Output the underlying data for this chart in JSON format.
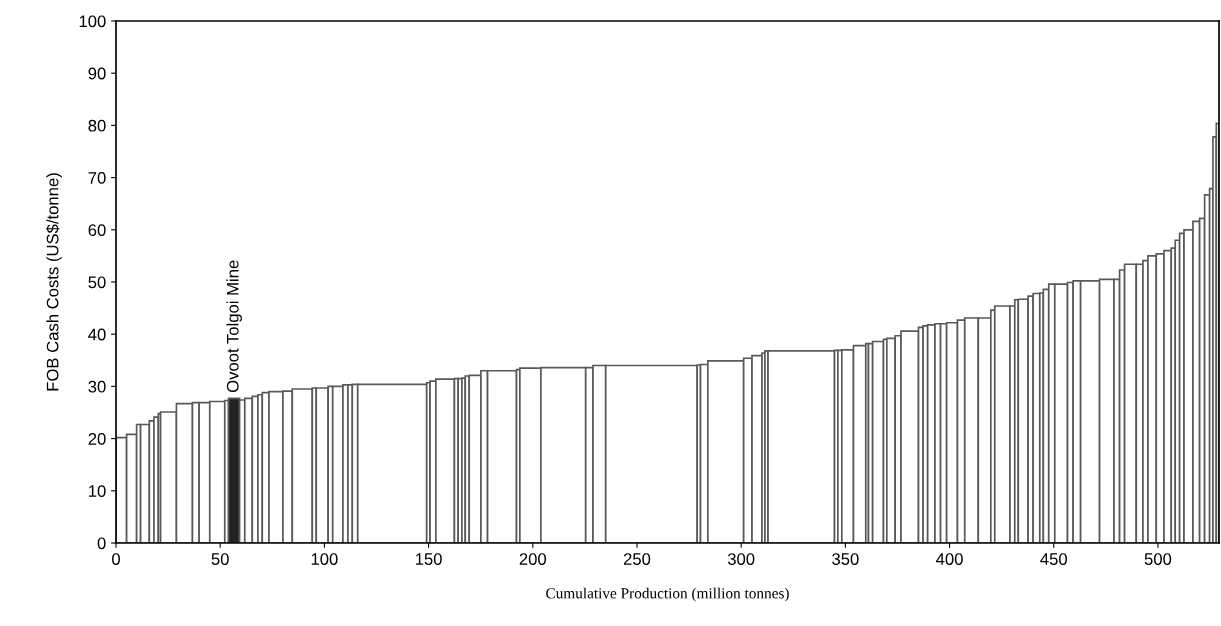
{
  "chart_data": {
    "type": "histogram",
    "xlabel": "Cumulative Production (million tonnes)",
    "ylabel": "FOB Cash Costs (US$/tonne)",
    "bins": [
      0,
      5.1,
      9.9,
      11.8,
      16,
      18.2,
      20.3,
      21.4,
      29,
      36.7,
      39.9,
      45,
      52.2,
      54,
      59.3,
      61.8,
      65.4,
      68.1,
      70.2,
      73.4,
      80.1,
      84.6,
      94.2,
      96.1,
      101.8,
      104,
      108.9,
      111.3,
      113.4,
      116,
      149.1,
      150.7,
      153.5,
      162.4,
      164.2,
      166,
      167.6,
      169.5,
      175.1,
      178.3,
      192.2,
      193.8,
      203.9,
      225.4,
      228.9,
      235,
      278.9,
      280.5,
      284,
      301.2,
      305.2,
      310,
      311.4,
      312.9,
      344.8,
      346.4,
      348.3,
      353.9,
      359.8,
      361.1,
      363.1,
      368.3,
      369.9,
      373.9,
      376.7,
      385.1,
      387.3,
      389.5,
      393,
      395.7,
      398.6,
      403.8,
      407.3,
      413.8,
      419.8,
      421.7,
      429,
      431.3,
      433,
      437.7,
      440.1,
      443.3,
      445,
      447.6,
      450.5,
      456.6,
      459.3,
      462.9,
      472,
      478.9,
      481.6,
      484,
      489.6,
      492.8,
      495.2,
      499.2,
      502.9,
      506.4,
      508.3,
      510.4,
      512.5,
      516.8,
      520,
      522.4,
      524.8,
      526.4,
      528,
      529.3
    ],
    "values": [
      20.2,
      20.8,
      22.7,
      22.7,
      23.4,
      24.1,
      24.8,
      25.1,
      26.7,
      26.9,
      26.9,
      27.1,
      27.3,
      27.7,
      27.4,
      27.7,
      28.1,
      28.4,
      28.8,
      29.0,
      29.1,
      29.5,
      29.7,
      29.7,
      30.0,
      30.0,
      30.3,
      30.3,
      30.4,
      30.4,
      30.7,
      31.0,
      31.4,
      31.5,
      31.5,
      31.6,
      32.0,
      32.1,
      33.0,
      33.0,
      33.2,
      33.5,
      33.6,
      33.6,
      34.0,
      34.0,
      34.1,
      34.2,
      34.9,
      35.4,
      35.9,
      36.4,
      36.8,
      36.8,
      36.9,
      36.9,
      37.0,
      37.8,
      38.2,
      38.2,
      38.6,
      39.0,
      39.2,
      39.7,
      40.6,
      41.3,
      41.6,
      41.8,
      42.0,
      42.0,
      42.2,
      42.7,
      43.1,
      43.1,
      44.6,
      45.4,
      45.4,
      46.6,
      46.7,
      47.3,
      47.8,
      47.9,
      48.6,
      49.6,
      49.6,
      49.9,
      50.2,
      50.2,
      50.5,
      50.5,
      52.3,
      53.4,
      53.4,
      54.1,
      55.0,
      55.4,
      56.0,
      56.5,
      58.0,
      59.3,
      60.0,
      61.6,
      62.2,
      66.7,
      67.9,
      77.8,
      80.4
    ],
    "colors": [
      "#ffffff",
      "#ffffff",
      "#ffffff",
      "#ffffff",
      "#ffffff",
      "#ffffff",
      "#ffffff",
      "#ffffff",
      "#ffffff",
      "#ffffff",
      "#ffffff",
      "#ffffff",
      "#ffffff",
      "#222222",
      "#ffffff",
      "#ffffff",
      "#ffffff",
      "#ffffff",
      "#ffffff",
      "#ffffff",
      "#ffffff",
      "#ffffff",
      "#ffffff",
      "#ffffff",
      "#ffffff",
      "#ffffff",
      "#ffffff",
      "#ffffff",
      "#ffffff",
      "#ffffff",
      "#ffffff",
      "#ffffff",
      "#ffffff",
      "#ffffff",
      "#ffffff",
      "#ffffff",
      "#ffffff",
      "#ffffff",
      "#ffffff",
      "#ffffff",
      "#ffffff",
      "#ffffff",
      "#ffffff",
      "#ffffff",
      "#ffffff",
      "#ffffff",
      "#ffffff",
      "#ffffff",
      "#ffffff",
      "#ffffff",
      "#ffffff",
      "#ffffff",
      "#ffffff",
      "#ffffff",
      "#ffffff",
      "#ffffff",
      "#ffffff",
      "#ffffff",
      "#ffffff",
      "#ffffff",
      "#ffffff",
      "#ffffff",
      "#ffffff",
      "#ffffff",
      "#ffffff",
      "#ffffff",
      "#ffffff",
      "#ffffff",
      "#ffffff",
      "#ffffff",
      "#ffffff",
      "#ffffff",
      "#ffffff",
      "#ffffff",
      "#ffffff",
      "#ffffff",
      "#ffffff",
      "#ffffff",
      "#ffffff",
      "#ffffff",
      "#ffffff",
      "#ffffff",
      "#ffffff",
      "#ffffff",
      "#ffffff",
      "#ffffff",
      "#ffffff",
      "#ffffff",
      "#ffffff",
      "#ffffff",
      "#ffffff",
      "#ffffff",
      "#ffffff",
      "#ffffff",
      "#ffffff",
      "#ffffff",
      "#ffffff",
      "#ffffff",
      "#ffffff",
      "#ffffff",
      "#ffffff",
      "#ffffff",
      "#ffffff",
      "#ffffff",
      "#ffffff",
      "#ffffff",
      "#ffffff"
    ],
    "annotations": [
      {
        "text": "Ovoot Tolgoi Mine",
        "x": 56.7,
        "y": 27.7
      }
    ],
    "xlim": [
      0,
      529.3
    ],
    "xticks": [
      0,
      50,
      100,
      150,
      200,
      250,
      300,
      350,
      400,
      450,
      500
    ],
    "ylim": [
      0,
      100
    ],
    "yticks": [
      0,
      10,
      20,
      30,
      40,
      50,
      60,
      70,
      80,
      90,
      100
    ],
    "grid": false,
    "legend": false
  }
}
